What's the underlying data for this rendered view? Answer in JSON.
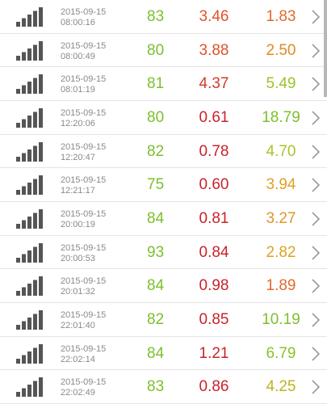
{
  "icons": {
    "signal": "signal-bars-icon",
    "chevron": "chevron-right-icon"
  },
  "colors": {
    "green": "#7cbf2c",
    "red": "#c8232c",
    "orange": "#e06b2a",
    "amber": "#e09a22",
    "icon": "#555555"
  },
  "rows": [
    {
      "date": "2015-09-15",
      "time": "08:00:16",
      "v1": "83",
      "v2": "3.46",
      "v3": "1.83",
      "c1": "#7cbf2c",
      "c2": "#e0522c",
      "c3": "#e06b2a"
    },
    {
      "date": "2015-09-15",
      "time": "08:00:49",
      "v1": "80",
      "v2": "3.88",
      "v3": "2.50",
      "c1": "#7cbf2c",
      "c2": "#e0522c",
      "c3": "#e08a22"
    },
    {
      "date": "2015-09-15",
      "time": "08:01:19",
      "v1": "81",
      "v2": "4.37",
      "v3": "5.49",
      "c1": "#7cbf2c",
      "c2": "#d43a2a",
      "c3": "#9cc22a"
    },
    {
      "date": "2015-09-15",
      "time": "12:20:06",
      "v1": "80",
      "v2": "0.61",
      "v3": "18.79",
      "c1": "#7cbf2c",
      "c2": "#c8232c",
      "c3": "#7cbf2c"
    },
    {
      "date": "2015-09-15",
      "time": "12:20:47",
      "v1": "82",
      "v2": "0.78",
      "v3": "4.70",
      "c1": "#7cbf2c",
      "c2": "#c8232c",
      "c3": "#a6c42a"
    },
    {
      "date": "2015-09-15",
      "time": "12:21:17",
      "v1": "75",
      "v2": "0.60",
      "v3": "3.94",
      "c1": "#7cbf2c",
      "c2": "#c8232c",
      "c3": "#e0a022"
    },
    {
      "date": "2015-09-15",
      "time": "20:00:19",
      "v1": "84",
      "v2": "0.81",
      "v3": "3.27",
      "c1": "#7cbf2c",
      "c2": "#c8232c",
      "c3": "#e0962a"
    },
    {
      "date": "2015-09-15",
      "time": "20:00:53",
      "v1": "93",
      "v2": "0.84",
      "v3": "2.82",
      "c1": "#7cbf2c",
      "c2": "#c8232c",
      "c3": "#e0a022"
    },
    {
      "date": "2015-09-15",
      "time": "20:01:32",
      "v1": "84",
      "v2": "0.98",
      "v3": "1.89",
      "c1": "#7cbf2c",
      "c2": "#c8232c",
      "c3": "#e06b2a"
    },
    {
      "date": "2015-09-15",
      "time": "22:01:40",
      "v1": "82",
      "v2": "0.85",
      "v3": "10.19",
      "c1": "#7cbf2c",
      "c2": "#c8232c",
      "c3": "#7cbf2c"
    },
    {
      "date": "2015-09-15",
      "time": "22:02:14",
      "v1": "84",
      "v2": "1.21",
      "v3": "6.79",
      "c1": "#7cbf2c",
      "c2": "#c8232c",
      "c3": "#8cc02a"
    },
    {
      "date": "2015-09-15",
      "time": "22:02:49",
      "v1": "83",
      "v2": "0.86",
      "v3": "4.25",
      "c1": "#7cbf2c",
      "c2": "#c8232c",
      "c3": "#c0b222"
    }
  ]
}
